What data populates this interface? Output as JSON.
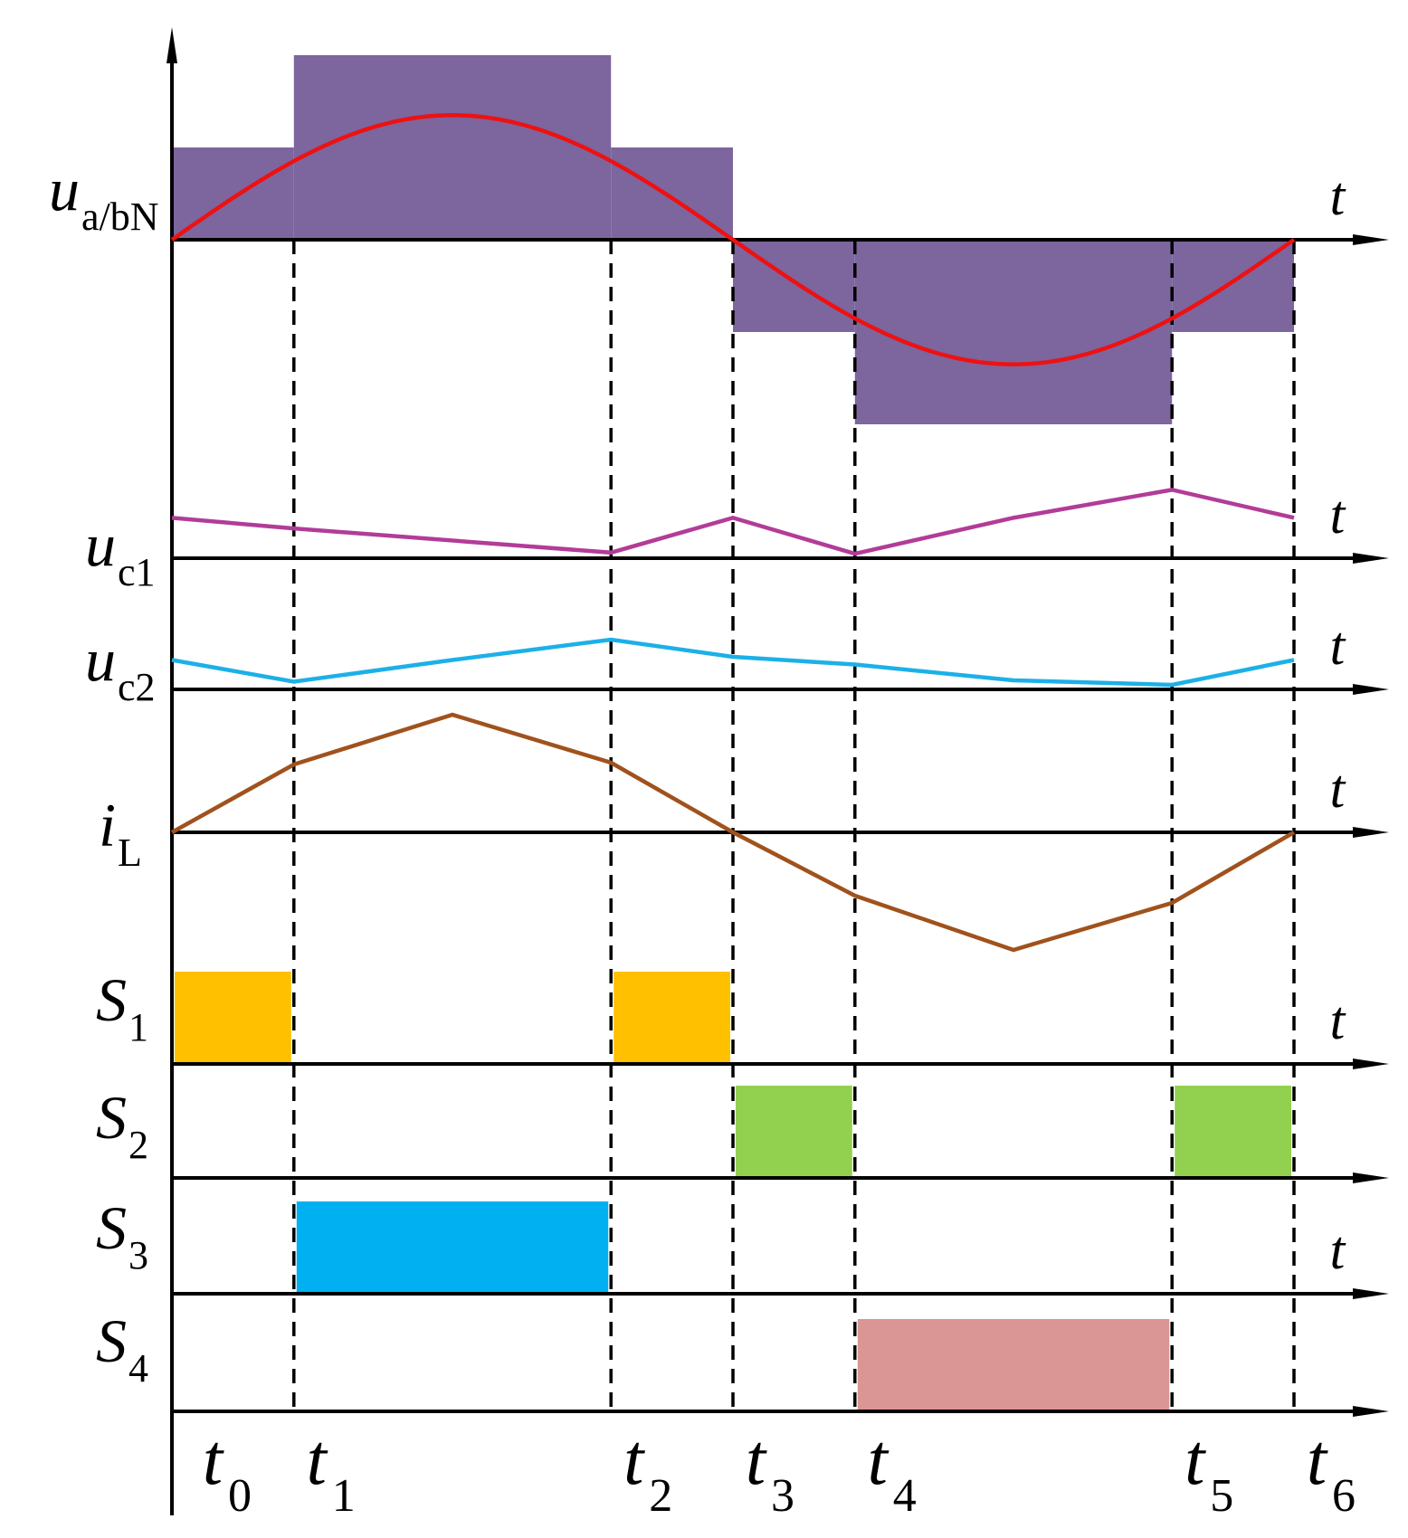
{
  "time_markers": [
    "t0",
    "t1",
    "t2",
    "t3",
    "t4",
    "t5",
    "t6"
  ],
  "time_positions": [
    0,
    1,
    3.6,
    4.6,
    5.6,
    8.2,
    9.2
  ],
  "waveforms": {
    "u_abN": {
      "label": {
        "main": "u",
        "sub": "a/bN"
      },
      "axis_t": "t",
      "color_fill": "#7D659E",
      "color_curve": "#EE1111",
      "levels": [
        {
          "from": 0,
          "to": 1,
          "level": 1
        },
        {
          "from": 1,
          "to": 3.6,
          "level": 2
        },
        {
          "from": 3.6,
          "to": 4.6,
          "level": 1
        },
        {
          "from": 4.6,
          "to": 5.6,
          "level": -1
        },
        {
          "from": 5.6,
          "to": 8.2,
          "level": -2
        },
        {
          "from": 8.2,
          "to": 9.2,
          "level": -1
        }
      ],
      "sine_peak_level": 1.35
    },
    "uc1": {
      "label": {
        "main": "u",
        "sub": "c1"
      },
      "axis_t": "t",
      "color": "#B23C98",
      "points": [
        [
          0,
          0.72
        ],
        [
          1,
          0.53
        ],
        [
          3.6,
          0.1
        ],
        [
          4.6,
          0.72
        ],
        [
          5.6,
          0.08
        ],
        [
          6.9,
          0.72
        ],
        [
          8.2,
          1.22
        ],
        [
          9.2,
          0.72
        ]
      ]
    },
    "uc2": {
      "label": {
        "main": "u",
        "sub": "c2"
      },
      "axis_t": "t",
      "color": "#1CB0E8",
      "points": [
        [
          0,
          0.65
        ],
        [
          1,
          0.17
        ],
        [
          2.3,
          0.65
        ],
        [
          3.6,
          1.1
        ],
        [
          4.6,
          0.72
        ],
        [
          5.6,
          0.55
        ],
        [
          6.9,
          0.2
        ],
        [
          8.2,
          0.1
        ],
        [
          9.2,
          0.65
        ]
      ]
    },
    "iL": {
      "label": {
        "main": "i",
        "sub": "L"
      },
      "axis_t": "t",
      "color": "#A0521D",
      "points": [
        [
          0,
          0
        ],
        [
          1,
          0.75
        ],
        [
          2.3,
          1.3
        ],
        [
          3.6,
          0.77
        ],
        [
          4.6,
          0
        ],
        [
          5.6,
          -0.7
        ],
        [
          6.9,
          -1.3
        ],
        [
          8.2,
          -0.78
        ],
        [
          9.2,
          0
        ]
      ]
    },
    "S1": {
      "label": {
        "main": "S",
        "sub": "1"
      },
      "axis_t": "t",
      "color": "#FFC000",
      "pulses": [
        [
          0,
          1
        ],
        [
          3.6,
          4.6
        ]
      ]
    },
    "S2": {
      "label": {
        "main": "S",
        "sub": "2"
      },
      "axis_t": "",
      "color": "#92D050",
      "pulses": [
        [
          4.6,
          5.6
        ],
        [
          8.2,
          9.2
        ]
      ]
    },
    "S3": {
      "label": {
        "main": "S",
        "sub": "3"
      },
      "axis_t": "t",
      "color": "#00B0F0",
      "pulses": [
        [
          1,
          3.6
        ]
      ]
    },
    "S4": {
      "label": {
        "main": "S",
        "sub": "4"
      },
      "axis_t": "",
      "color": "#D99694",
      "pulses": [
        [
          5.6,
          8.2
        ]
      ]
    }
  },
  "bottom_labels": [
    {
      "main": "t",
      "sub": "0"
    },
    {
      "main": "t",
      "sub": "1"
    },
    {
      "main": "t",
      "sub": "2"
    },
    {
      "main": "t",
      "sub": "3"
    },
    {
      "main": "t",
      "sub": "4"
    },
    {
      "main": "t",
      "sub": "5"
    },
    {
      "main": "t",
      "sub": "6"
    }
  ]
}
